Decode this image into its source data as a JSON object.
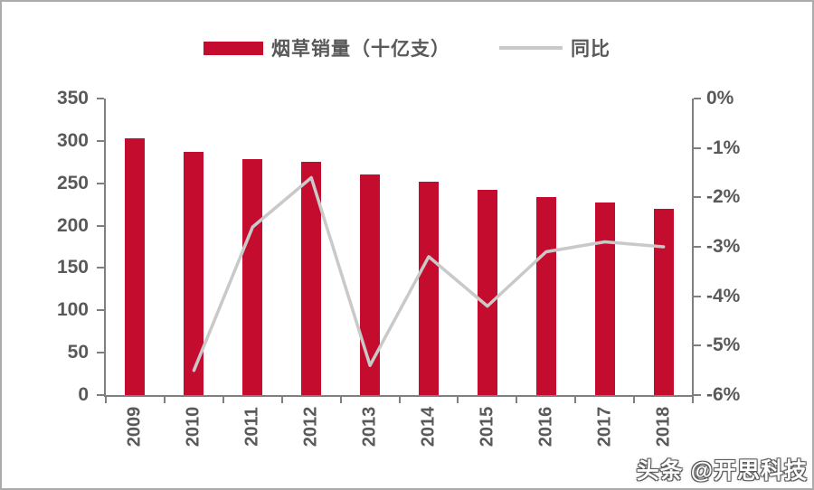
{
  "page": {
    "watermark": "头条 @开思科技"
  },
  "legend": {
    "items": [
      {
        "label": "烟草销量（十亿支）",
        "type": "bar",
        "color": "#c40d2e"
      },
      {
        "label": "同比",
        "type": "line",
        "color": "#c9c9c9"
      }
    ]
  },
  "chart_data": {
    "type": "bar",
    "title": "",
    "categories": [
      "2009",
      "2010",
      "2011",
      "2012",
      "2013",
      "2014",
      "2015",
      "2016",
      "2017",
      "2018"
    ],
    "series": [
      {
        "name": "烟草销量（十亿支）",
        "type": "bar",
        "axis": "left",
        "color": "#c40d2e",
        "values": [
          303,
          287,
          279,
          275,
          260,
          252,
          242,
          234,
          227,
          220
        ]
      },
      {
        "name": "同比",
        "type": "line",
        "axis": "right",
        "color": "#c9c9c9",
        "unit": "%",
        "values": [
          null,
          -5.5,
          -2.6,
          -1.6,
          -5.4,
          -3.2,
          -4.2,
          -3.1,
          -2.9,
          -3.0
        ]
      }
    ],
    "left_axis": {
      "min": 0,
      "max": 350,
      "step": 50,
      "ticks": [
        "350",
        "300",
        "250",
        "200",
        "150",
        "100",
        "50",
        "0"
      ]
    },
    "right_axis": {
      "min": -6,
      "max": 0,
      "step": 1,
      "ticks": [
        "0%",
        "-1%",
        "-2%",
        "-3%",
        "-4%",
        "-5%",
        "-6%"
      ]
    },
    "legend_position": "top",
    "grid": false
  },
  "colors": {
    "bar": "#c40d2e",
    "line": "#c9c9c9",
    "axis": "#7f7f7f",
    "text": "#595959"
  }
}
